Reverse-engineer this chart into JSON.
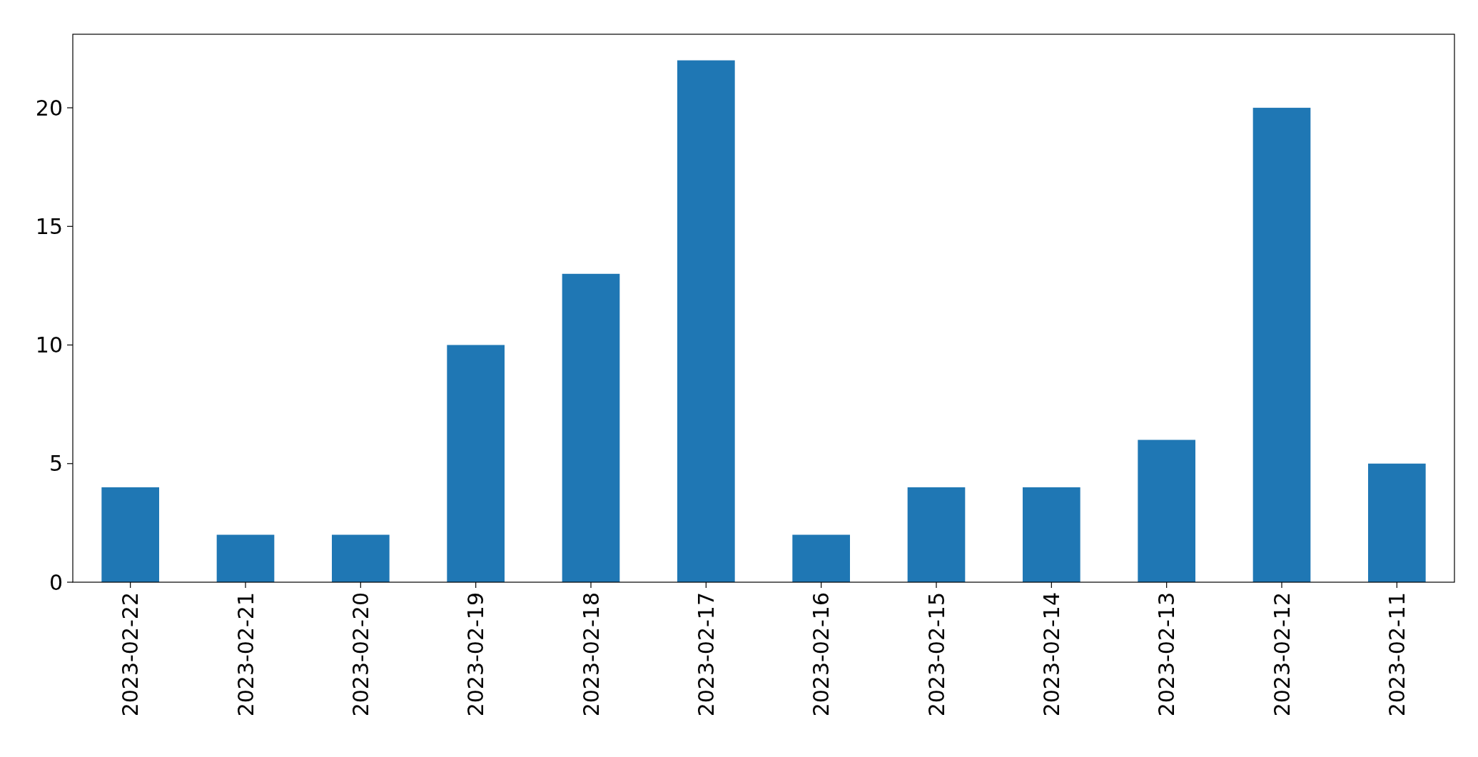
{
  "chart_data": {
    "type": "bar",
    "categories": [
      "2023-02-22",
      "2023-02-21",
      "2023-02-20",
      "2023-02-19",
      "2023-02-18",
      "2023-02-17",
      "2023-02-16",
      "2023-02-15",
      "2023-02-14",
      "2023-02-13",
      "2023-02-12",
      "2023-02-11"
    ],
    "values": [
      4,
      2,
      2,
      10,
      13,
      22,
      2,
      4,
      4,
      6,
      20,
      5
    ],
    "color": "#1f77b4",
    "ylim": [
      0,
      23.1
    ],
    "yticks": [
      0,
      5,
      10,
      15,
      20
    ],
    "grid": false
  }
}
